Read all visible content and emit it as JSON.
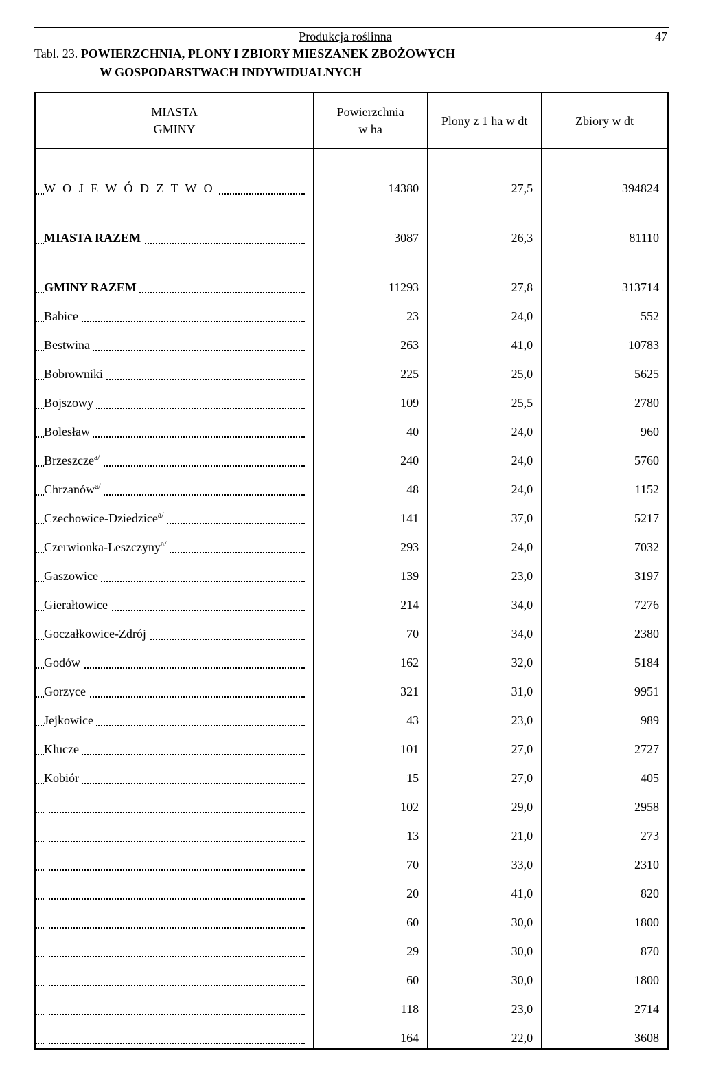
{
  "page": {
    "running_head": "Produkcja roślinna",
    "page_number": "47",
    "table_label": "Tabl. 23.",
    "table_title": "POWIERZCHNIA, PLONY I ZBIORY MIESZANEK ZBOŻOWYCH",
    "table_subtitle": "W GOSPODARSTWACH INDYWIDUALNYCH"
  },
  "columns": {
    "c1_line1": "MIASTA",
    "c1_line2": "GMINY",
    "c2_line1": "Powierzchnia",
    "c2_line2": "w ha",
    "c3": "Plony z 1 ha w dt",
    "c4": "Zbiory w dt"
  },
  "colwidths": {
    "c1": "44%",
    "c2": "18%",
    "c3": "18%",
    "c4": "20%"
  },
  "rows": [
    {
      "label": "W O J E W Ó D Z T W O",
      "spaced": true,
      "bold": false,
      "section": true,
      "sup": "",
      "v1": "14380",
      "v2": "27,5",
      "v3": "394824"
    },
    {
      "label": "MIASTA RAZEM",
      "spaced": false,
      "bold": true,
      "section": true,
      "sup": "",
      "v1": "3087",
      "v2": "26,3",
      "v3": "81110"
    },
    {
      "label": "GMINY RAZEM",
      "spaced": false,
      "bold": true,
      "section": true,
      "sup": "",
      "v1": "11293",
      "v2": "27,8",
      "v3": "313714"
    },
    {
      "label": "Babice",
      "spaced": false,
      "bold": false,
      "section": false,
      "sup": "",
      "v1": "23",
      "v2": "24,0",
      "v3": "552"
    },
    {
      "label": "Bestwina",
      "spaced": false,
      "bold": false,
      "section": false,
      "sup": "",
      "v1": "263",
      "v2": "41,0",
      "v3": "10783"
    },
    {
      "label": "Bobrowniki",
      "spaced": false,
      "bold": false,
      "section": false,
      "sup": "",
      "v1": "225",
      "v2": "25,0",
      "v3": "5625"
    },
    {
      "label": "Bojszowy",
      "spaced": false,
      "bold": false,
      "section": false,
      "sup": "",
      "v1": "109",
      "v2": "25,5",
      "v3": "2780"
    },
    {
      "label": "Bolesław",
      "spaced": false,
      "bold": false,
      "section": false,
      "sup": "",
      "v1": "40",
      "v2": "24,0",
      "v3": "960"
    },
    {
      "label": "Brzeszcze",
      "spaced": false,
      "bold": false,
      "section": false,
      "sup": "a/",
      "v1": "240",
      "v2": "24,0",
      "v3": "5760"
    },
    {
      "label": "Chrzanów",
      "spaced": false,
      "bold": false,
      "section": false,
      "sup": "a/",
      "v1": "48",
      "v2": "24,0",
      "v3": "1152"
    },
    {
      "label": "Czechowice-Dziedzice",
      "spaced": false,
      "bold": false,
      "section": false,
      "sup": "a/",
      "v1": "141",
      "v2": "37,0",
      "v3": "5217"
    },
    {
      "label": "Czerwionka-Leszczyny",
      "spaced": false,
      "bold": false,
      "section": false,
      "sup": "a/",
      "v1": "293",
      "v2": "24,0",
      "v3": "7032"
    },
    {
      "label": "Gaszowice",
      "spaced": false,
      "bold": false,
      "section": false,
      "sup": "",
      "v1": "139",
      "v2": "23,0",
      "v3": "3197"
    },
    {
      "label": "Gierałtowice",
      "spaced": false,
      "bold": false,
      "section": false,
      "sup": "",
      "v1": "214",
      "v2": "34,0",
      "v3": "7276"
    },
    {
      "label": "Goczałkowice-Zdrój",
      "spaced": false,
      "bold": false,
      "section": false,
      "sup": "",
      "v1": "70",
      "v2": "34,0",
      "v3": "2380"
    },
    {
      "label": "Godów",
      "spaced": false,
      "bold": false,
      "section": false,
      "sup": "",
      "v1": "162",
      "v2": "32,0",
      "v3": "5184"
    },
    {
      "label": "Gorzyce",
      "spaced": false,
      "bold": false,
      "section": false,
      "sup": "",
      "v1": "321",
      "v2": "31,0",
      "v3": "9951"
    },
    {
      "label": "Jejkowice",
      "spaced": false,
      "bold": false,
      "section": false,
      "sup": "",
      "v1": "43",
      "v2": "23,0",
      "v3": "989"
    },
    {
      "label": "Klucze",
      "spaced": false,
      "bold": false,
      "section": false,
      "sup": "",
      "v1": "101",
      "v2": "27,0",
      "v3": "2727"
    },
    {
      "label": "Kobiór",
      "spaced": false,
      "bold": false,
      "section": false,
      "sup": "",
      "v1": "15",
      "v2": "27,0",
      "v3": "405"
    },
    {
      "label": "",
      "spaced": false,
      "bold": false,
      "section": false,
      "sup": "",
      "v1": "102",
      "v2": "29,0",
      "v3": "2958"
    },
    {
      "label": "",
      "spaced": false,
      "bold": false,
      "section": false,
      "sup": "",
      "v1": "13",
      "v2": "21,0",
      "v3": "273"
    },
    {
      "label": "",
      "spaced": false,
      "bold": false,
      "section": false,
      "sup": "",
      "v1": "70",
      "v2": "33,0",
      "v3": "2310"
    },
    {
      "label": "",
      "spaced": false,
      "bold": false,
      "section": false,
      "sup": "",
      "v1": "20",
      "v2": "41,0",
      "v3": "820"
    },
    {
      "label": "",
      "spaced": false,
      "bold": false,
      "section": false,
      "sup": "",
      "v1": "60",
      "v2": "30,0",
      "v3": "1800"
    },
    {
      "label": "",
      "spaced": false,
      "bold": false,
      "section": false,
      "sup": "",
      "v1": "29",
      "v2": "30,0",
      "v3": "870"
    },
    {
      "label": "",
      "spaced": false,
      "bold": false,
      "section": false,
      "sup": "",
      "v1": "60",
      "v2": "30,0",
      "v3": "1800"
    },
    {
      "label": "",
      "spaced": false,
      "bold": false,
      "section": false,
      "sup": "",
      "v1": "118",
      "v2": "23,0",
      "v3": "2714"
    },
    {
      "label": "",
      "spaced": false,
      "bold": false,
      "section": false,
      "sup": "",
      "v1": "164",
      "v2": "22,0",
      "v3": "3608"
    }
  ]
}
